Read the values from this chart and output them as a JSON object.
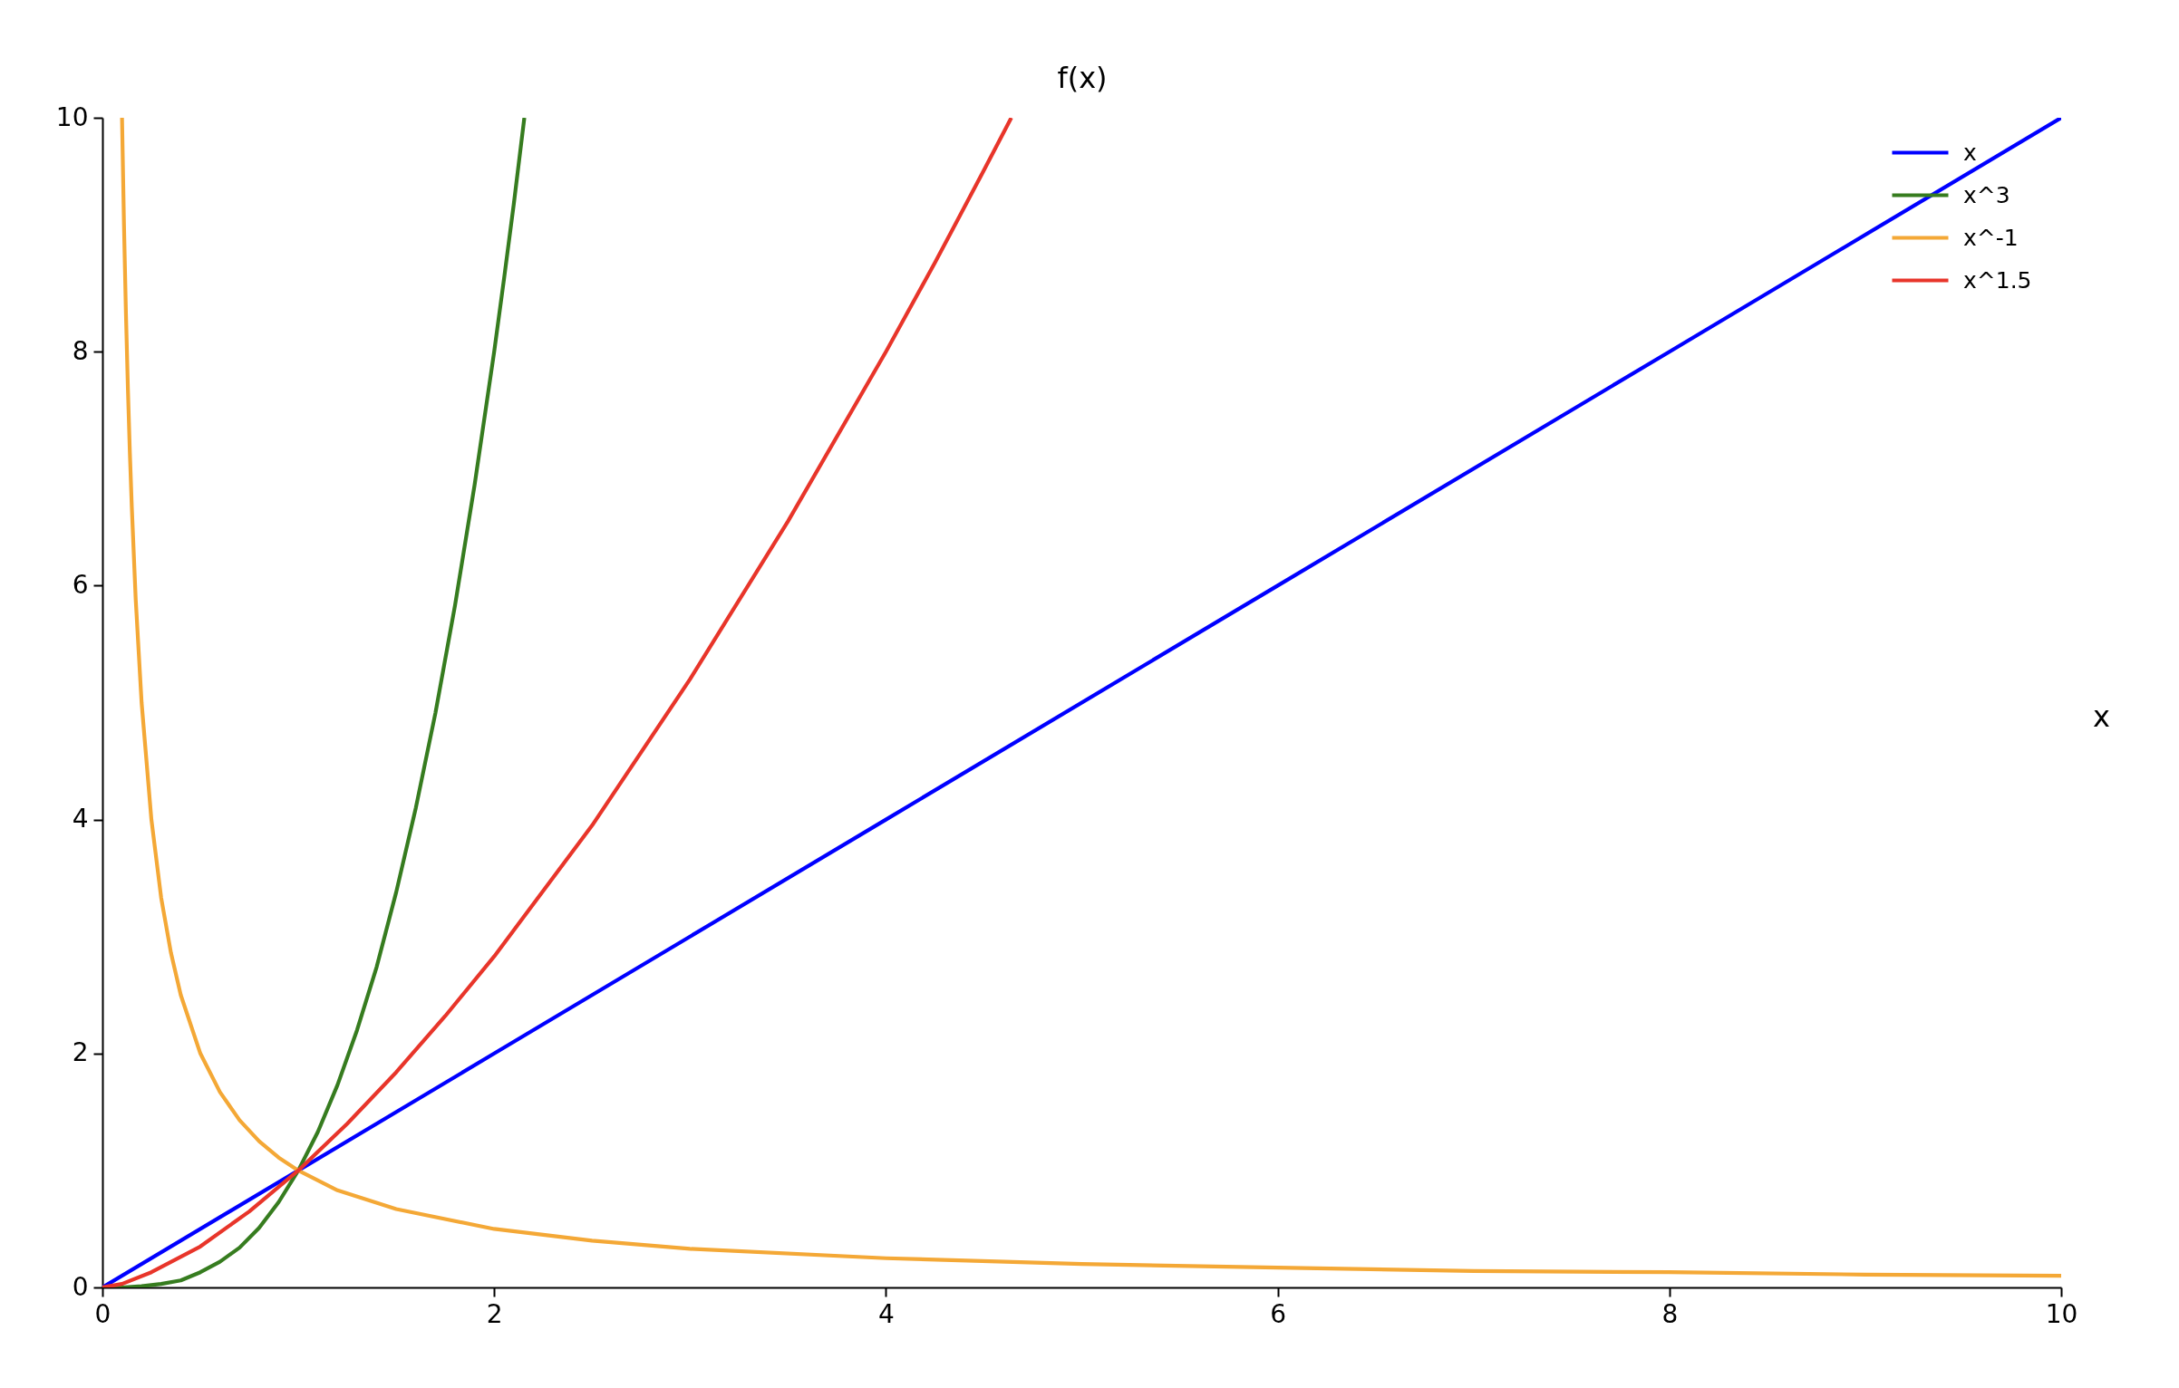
{
  "chart_data": {
    "type": "line",
    "xlabel": "x",
    "ylabel": "f(x)",
    "xlim": [
      0,
      10
    ],
    "ylim": [
      0,
      10
    ],
    "xticks": [
      0,
      2,
      4,
      6,
      8,
      10
    ],
    "yticks": [
      0,
      2,
      4,
      6,
      8,
      10
    ],
    "legend": "top right",
    "line_style": "solid",
    "series": [
      {
        "name": "x",
        "color": "#0000ff",
        "x": [
          0,
          2,
          4,
          6,
          8,
          10
        ],
        "values": [
          0,
          2,
          4,
          6,
          8,
          10
        ]
      },
      {
        "name": "x^3",
        "color": "#367c1f",
        "x": [
          0,
          0.1,
          0.2,
          0.3,
          0.4,
          0.5,
          0.6,
          0.7,
          0.8,
          0.9,
          1,
          1.1,
          1.2,
          1.3,
          1.4,
          1.5,
          1.6,
          1.7,
          1.8,
          1.9,
          2,
          2.05,
          2.1,
          2.154
        ],
        "values": [
          0,
          0,
          0.01,
          0.03,
          0.06,
          0.13,
          0.22,
          0.34,
          0.51,
          0.73,
          1,
          1.33,
          1.73,
          2.2,
          2.74,
          3.38,
          4.1,
          4.91,
          5.83,
          6.86,
          8,
          8.62,
          9.26,
          10
        ]
      },
      {
        "name": "x^-1",
        "color": "#f4a836",
        "x": [
          0.1,
          0.11,
          0.12,
          0.13,
          0.14,
          0.15,
          0.17,
          0.2,
          0.25,
          0.3,
          0.35,
          0.4,
          0.5,
          0.6,
          0.7,
          0.8,
          0.9,
          1,
          1.2,
          1.5,
          2,
          2.5,
          3,
          4,
          5,
          6,
          7,
          8,
          9,
          10
        ],
        "values": [
          10,
          9.09,
          8.33,
          7.69,
          7.14,
          6.67,
          5.88,
          5,
          4,
          3.33,
          2.86,
          2.5,
          2,
          1.67,
          1.43,
          1.25,
          1.11,
          1,
          0.83,
          0.67,
          0.5,
          0.4,
          0.33,
          0.25,
          0.2,
          0.17,
          0.14,
          0.13,
          0.11,
          0.1
        ]
      },
      {
        "name": "x^1.5",
        "color": "#e8352a",
        "x": [
          0,
          0.1,
          0.25,
          0.5,
          0.75,
          1,
          1.25,
          1.5,
          1.75,
          2,
          2.5,
          3,
          3.5,
          4,
          4.25,
          4.5,
          4.64
        ],
        "values": [
          0,
          0.03,
          0.13,
          0.35,
          0.65,
          1,
          1.4,
          1.84,
          2.32,
          2.83,
          3.95,
          5.2,
          6.55,
          8,
          8.76,
          9.55,
          10
        ]
      }
    ]
  }
}
